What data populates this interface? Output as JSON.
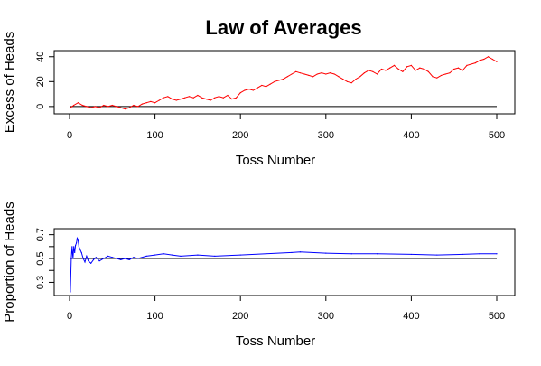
{
  "figure": {
    "title": "Law of Averages"
  },
  "chart_data": [
    {
      "type": "line",
      "title": "Law of Averages",
      "xlabel": "Toss Number",
      "ylabel": "Excess of Heads",
      "xlim": [
        0,
        500
      ],
      "ylim": [
        -3,
        42
      ],
      "xticks": [
        0,
        100,
        200,
        300,
        400,
        500
      ],
      "yticks": [
        0,
        20,
        40
      ],
      "grid": false,
      "color": "#ff0000",
      "reference_line": {
        "y": 0,
        "color": "#000000"
      },
      "x": [
        1,
        5,
        10,
        15,
        20,
        25,
        30,
        35,
        40,
        45,
        50,
        55,
        60,
        65,
        70,
        75,
        80,
        85,
        90,
        95,
        100,
        105,
        110,
        115,
        120,
        125,
        130,
        135,
        140,
        145,
        150,
        155,
        160,
        165,
        170,
        175,
        180,
        185,
        190,
        195,
        200,
        205,
        210,
        215,
        220,
        225,
        230,
        235,
        240,
        245,
        250,
        255,
        260,
        265,
        270,
        275,
        280,
        285,
        290,
        295,
        300,
        305,
        310,
        315,
        320,
        325,
        330,
        335,
        340,
        345,
        350,
        355,
        360,
        365,
        370,
        375,
        380,
        385,
        390,
        395,
        400,
        405,
        410,
        415,
        420,
        425,
        430,
        435,
        440,
        445,
        450,
        455,
        460,
        465,
        470,
        475,
        480,
        485,
        490,
        495,
        500
      ],
      "y": [
        -1,
        1,
        3,
        1,
        0,
        -1,
        0,
        -1,
        1,
        0,
        1,
        0,
        -1,
        -2,
        -1,
        1,
        0,
        2,
        3,
        4,
        3,
        5,
        7,
        8,
        6,
        5,
        6,
        7,
        8,
        7,
        9,
        7,
        6,
        5,
        7,
        8,
        7,
        9,
        6,
        7,
        11,
        13,
        14,
        13,
        15,
        17,
        16,
        18,
        20,
        21,
        22,
        24,
        26,
        28,
        27,
        26,
        25,
        24,
        26,
        27,
        26,
        27,
        26,
        24,
        22,
        20,
        19,
        22,
        24,
        27,
        29,
        28,
        26,
        30,
        29,
        31,
        33,
        30,
        28,
        32,
        33,
        29,
        31,
        30,
        28,
        24,
        23,
        25,
        26,
        27,
        30,
        31,
        29,
        33,
        34,
        35,
        37,
        38,
        40,
        38,
        36
      ]
    },
    {
      "type": "line",
      "title": "",
      "xlabel": "Toss Number",
      "ylabel": "Proportion of Heads",
      "xlim": [
        0,
        500
      ],
      "ylim": [
        0.22,
        0.72
      ],
      "xticks": [
        0,
        100,
        200,
        300,
        400,
        500
      ],
      "yticks": [
        0.3,
        0.4,
        0.5,
        0.6,
        0.7
      ],
      "ytick_labels": [
        "0.3",
        "",
        "0.5",
        "",
        "0.7"
      ],
      "grid": false,
      "color": "#0000ff",
      "reference_line": {
        "y": 0.5,
        "color": "#000000"
      },
      "x": [
        1,
        2,
        3,
        4,
        5,
        6,
        7,
        8,
        9,
        10,
        11,
        12,
        14,
        16,
        18,
        20,
        22,
        25,
        28,
        31,
        35,
        40,
        45,
        50,
        55,
        60,
        65,
        70,
        75,
        80,
        90,
        100,
        110,
        120,
        130,
        150,
        170,
        200,
        230,
        260,
        270,
        300,
        330,
        360,
        400,
        430,
        460,
        480,
        500
      ],
      "y": [
        0.22,
        0.5,
        0.6,
        0.5,
        0.6,
        0.55,
        0.61,
        0.63,
        0.67,
        0.65,
        0.6,
        0.58,
        0.55,
        0.5,
        0.47,
        0.52,
        0.48,
        0.46,
        0.49,
        0.51,
        0.48,
        0.5,
        0.52,
        0.51,
        0.5,
        0.49,
        0.5,
        0.49,
        0.51,
        0.5,
        0.52,
        0.53,
        0.54,
        0.53,
        0.52,
        0.53,
        0.52,
        0.53,
        0.54,
        0.55,
        0.555,
        0.545,
        0.54,
        0.54,
        0.535,
        0.53,
        0.535,
        0.54,
        0.54
      ]
    }
  ]
}
